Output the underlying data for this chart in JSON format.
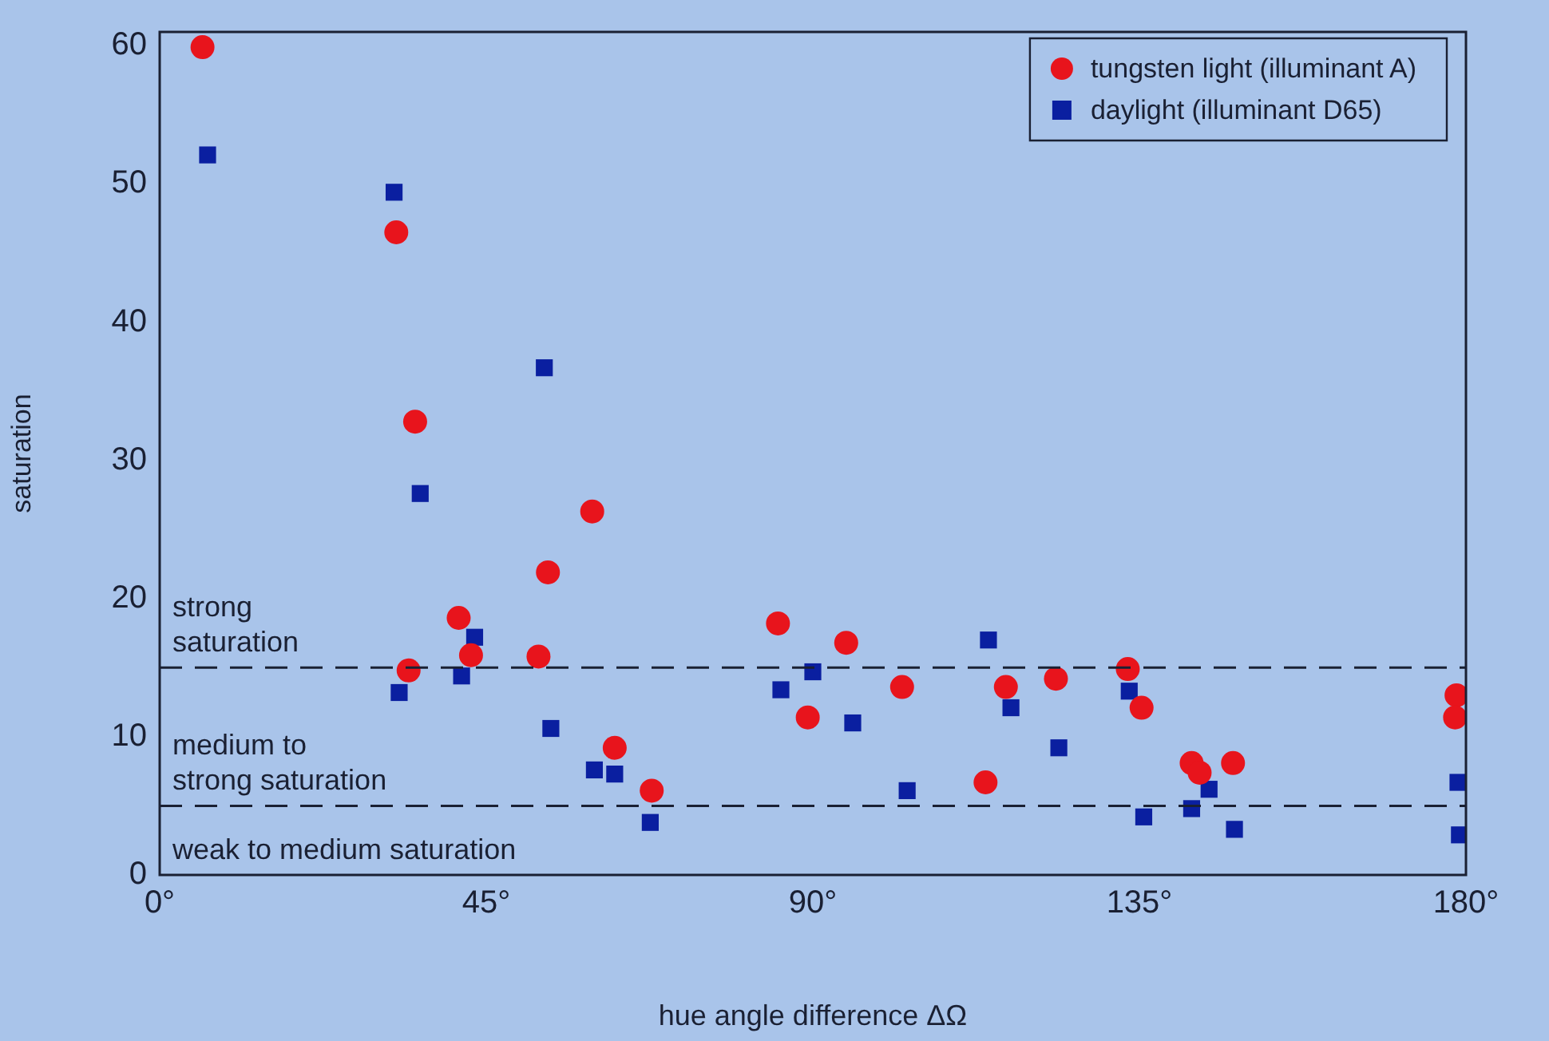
{
  "chart_data": {
    "type": "scatter",
    "xlabel": "hue angle difference ΔΩ",
    "ylabel": "saturation",
    "xlim": [
      0,
      180
    ],
    "xticks": [
      {
        "value": 0,
        "label": "0°"
      },
      {
        "value": 45,
        "label": "45°"
      },
      {
        "value": 90,
        "label": "90°"
      },
      {
        "value": 135,
        "label": "135°"
      },
      {
        "value": 180,
        "label": "180°"
      }
    ],
    "ylim": [
      0,
      61
    ],
    "yticks": [
      0,
      10,
      20,
      30,
      40,
      50,
      60
    ],
    "grid": false,
    "legend": "top right",
    "series": [
      {
        "name": "tungsten light (illuminant A)",
        "color": "#e8141c",
        "marker": "circle",
        "x": [
          5.9,
          32.6,
          35.2,
          59.6,
          53.5,
          41.2,
          42.9,
          52.2,
          34.3,
          62.7,
          67.8,
          85.2,
          94.6,
          89.3,
          102.3,
          113.8,
          116.6,
          123.5,
          133.4,
          135.3,
          142.2,
          143.3,
          147.9,
          178.7,
          178.5
        ],
        "values": [
          59.9,
          46.5,
          32.8,
          26.3,
          21.9,
          18.6,
          15.9,
          15.8,
          14.8,
          9.2,
          6.1,
          18.2,
          16.8,
          11.4,
          13.6,
          6.7,
          13.6,
          14.2,
          14.9,
          12.1,
          8.1,
          7.4,
          8.1,
          13.0,
          11.4
        ]
      },
      {
        "name": "daylight (illuminant D65)",
        "color": "#0a1fa0",
        "marker": "square",
        "x": [
          6.6,
          32.3,
          53.0,
          35.9,
          43.4,
          41.6,
          33.0,
          53.9,
          59.9,
          62.7,
          67.6,
          85.6,
          90.0,
          95.5,
          103.0,
          114.2,
          117.3,
          123.9,
          133.6,
          135.6,
          142.2,
          144.6,
          148.1,
          178.9,
          179.1
        ],
        "values": [
          52.1,
          49.4,
          36.7,
          27.6,
          17.2,
          14.4,
          13.2,
          10.6,
          7.6,
          7.3,
          3.8,
          13.4,
          14.7,
          11.0,
          6.1,
          17.0,
          12.1,
          9.2,
          13.3,
          4.2,
          4.8,
          6.2,
          3.3,
          6.7,
          2.9
        ]
      }
    ],
    "ref_lines": [
      {
        "axis": "y",
        "value": 15,
        "line_style": "dashed",
        "color": "#1a2033"
      },
      {
        "axis": "y",
        "value": 5,
        "line_style": "dashed",
        "color": "#1a2033"
      }
    ],
    "annotations": [
      "strong\nsaturation",
      "medium to\nstrong saturation",
      "weak to medium saturation"
    ]
  }
}
